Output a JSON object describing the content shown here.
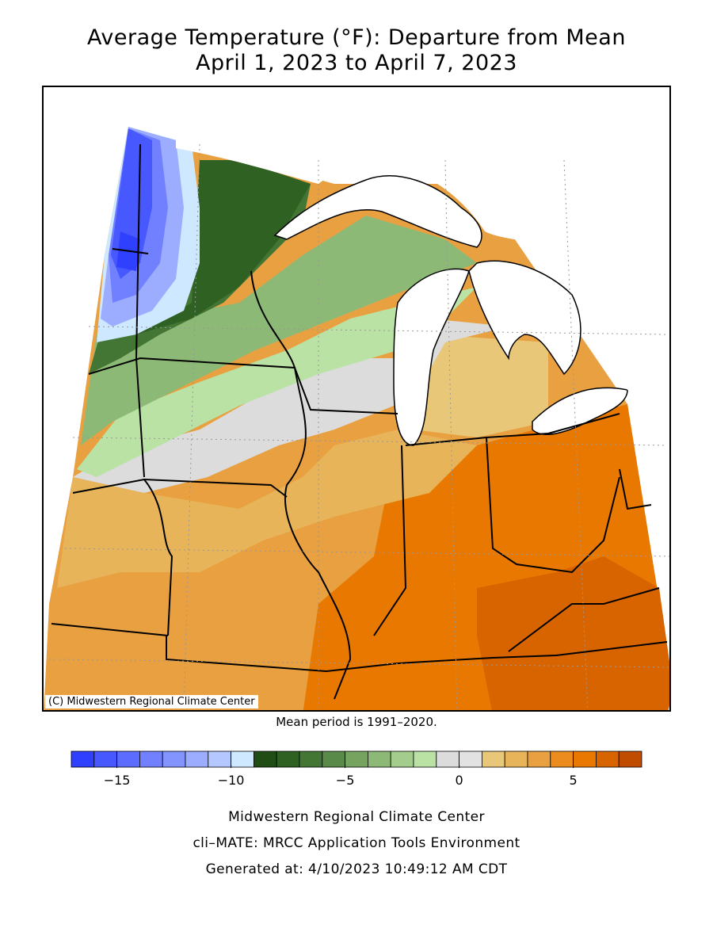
{
  "title": {
    "line1": "Average Temperature (°F): Departure from Mean",
    "line2": "April 1, 2023 to April 7, 2023"
  },
  "map": {
    "copyright": "(C) Midwestern Regional Climate Center",
    "mean_period": "Mean period is 1991–2020."
  },
  "colorbar": {
    "colors": [
      "#3040ff",
      "#4858ff",
      "#5b6cff",
      "#7080ff",
      "#8494ff",
      "#9cacff",
      "#b4c8ff",
      "#cde8ff",
      "#1f4d14",
      "#2f6222",
      "#437534",
      "#5a8a4a",
      "#76a35f",
      "#8db977",
      "#a3cc8d",
      "#bae2a5",
      "#dcdcdc",
      "#e2e2e2",
      "#e8c878",
      "#e8b45a",
      "#e8a040",
      "#ec8c1e",
      "#e87800",
      "#d86400",
      "#c04c00"
    ],
    "ticks": [
      {
        "label": "−15",
        "value": -15
      },
      {
        "label": "−10",
        "value": -10
      },
      {
        "label": "−5",
        "value": -5
      },
      {
        "label": "0",
        "value": 0
      },
      {
        "label": "5",
        "value": 5
      }
    ]
  },
  "footer": {
    "line1": "Midwestern Regional Climate Center",
    "line2": "cli–MATE: MRCC Application Tools Environment",
    "line3": "Generated at: 4/10/2023 10:49:12 AM CDT"
  }
}
